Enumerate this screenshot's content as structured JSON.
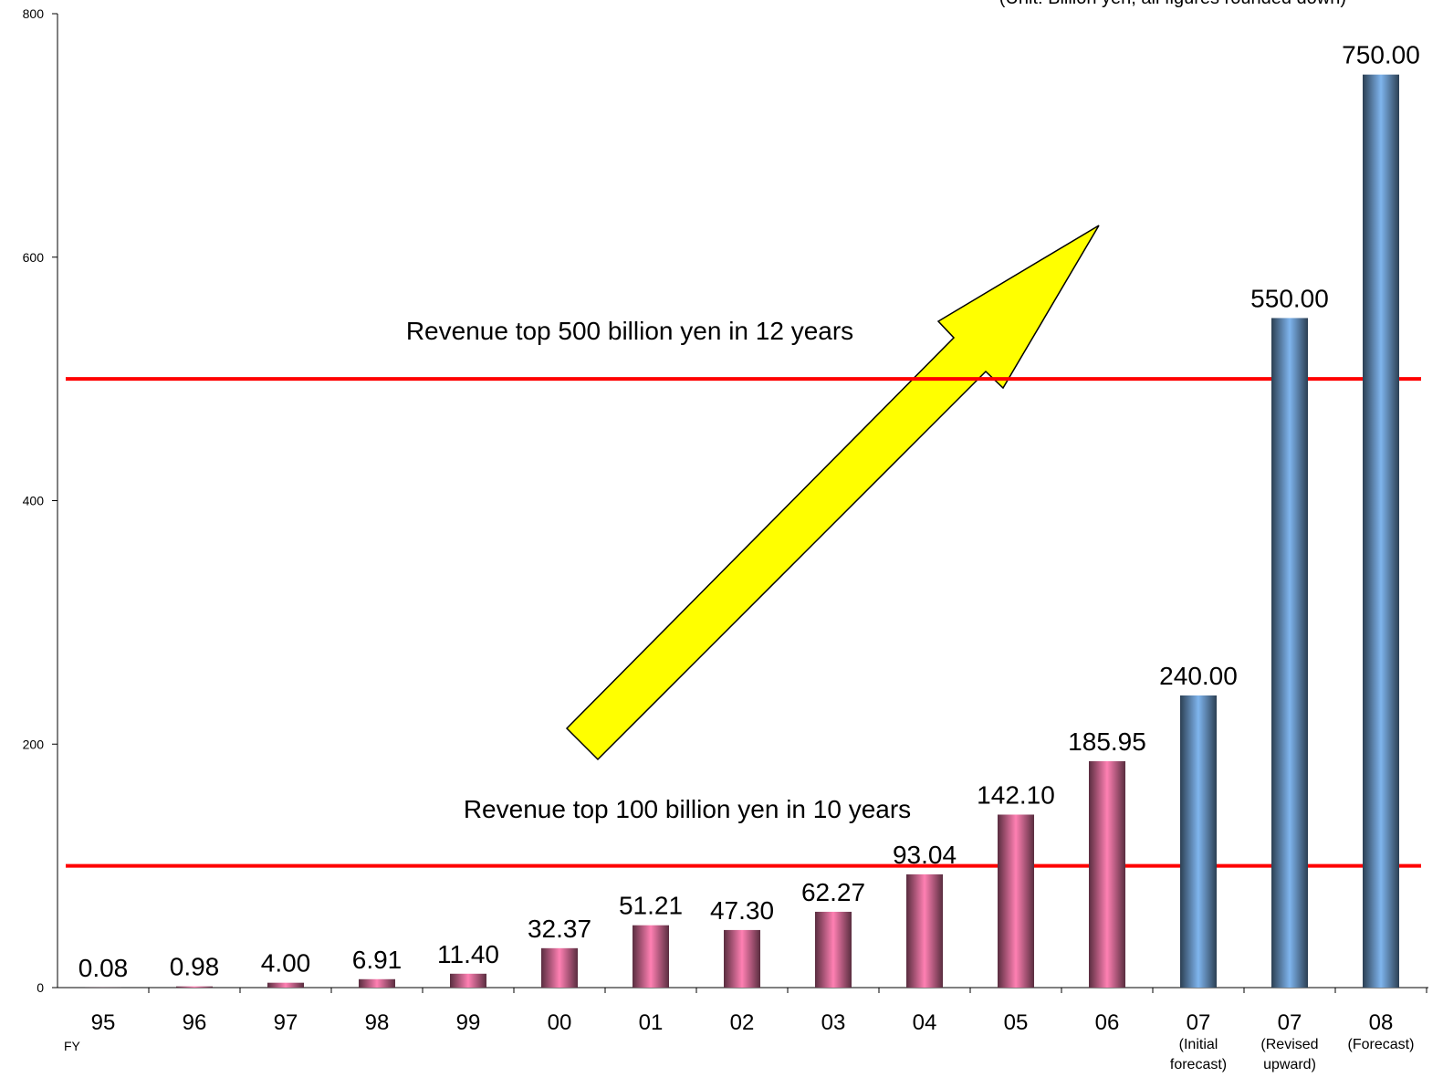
{
  "chart_data": {
    "type": "bar",
    "note": "(Unit: Billion yen, all figures rounded down)",
    "x_prefix": "FY",
    "categories": [
      "95",
      "96",
      "97",
      "98",
      "99",
      "00",
      "01",
      "02",
      "03",
      "04",
      "05",
      "06",
      "07",
      "07",
      "08"
    ],
    "category_notes": [
      null,
      null,
      null,
      null,
      null,
      null,
      null,
      null,
      null,
      null,
      null,
      null,
      [
        "(Initial",
        "forecast)"
      ],
      [
        "(Revised",
        "upward)"
      ],
      [
        "(Forecast)"
      ]
    ],
    "values": [
      0.08,
      0.98,
      4,
      6.91,
      11.4,
      32.37,
      51.21,
      47.3,
      62.27,
      93.04,
      142.1,
      185.95,
      240,
      550,
      750
    ],
    "value_labels": [
      "0.08",
      "0.98",
      "4.00",
      "6.91",
      "11.40",
      "32.37",
      "51.21",
      "47.30",
      "62.27",
      "93.04",
      "142.10",
      "185.95",
      "240.00",
      "550.00",
      "750.00"
    ],
    "colors": [
      "#ff80b3",
      "#ff80b3",
      "#ff80b3",
      "#ff80b3",
      "#ff80b3",
      "#ff80b3",
      "#ff80b3",
      "#ff80b3",
      "#ff80b3",
      "#ff80b3",
      "#ff80b3",
      "#ff80b3",
      "#7fb5ee",
      "#7fb5ee",
      "#7fb5ee"
    ],
    "ylim": [
      0,
      800
    ],
    "yticks": [
      0,
      200,
      400,
      600,
      800
    ],
    "reference_lines": [
      {
        "value": 500,
        "label": "Revenue top 500 billion yen in 12 years",
        "color": "#ff0000"
      },
      {
        "value": 100,
        "label": "Revenue top 100 billion yen in 10 years",
        "color": "#ff0000"
      }
    ]
  }
}
